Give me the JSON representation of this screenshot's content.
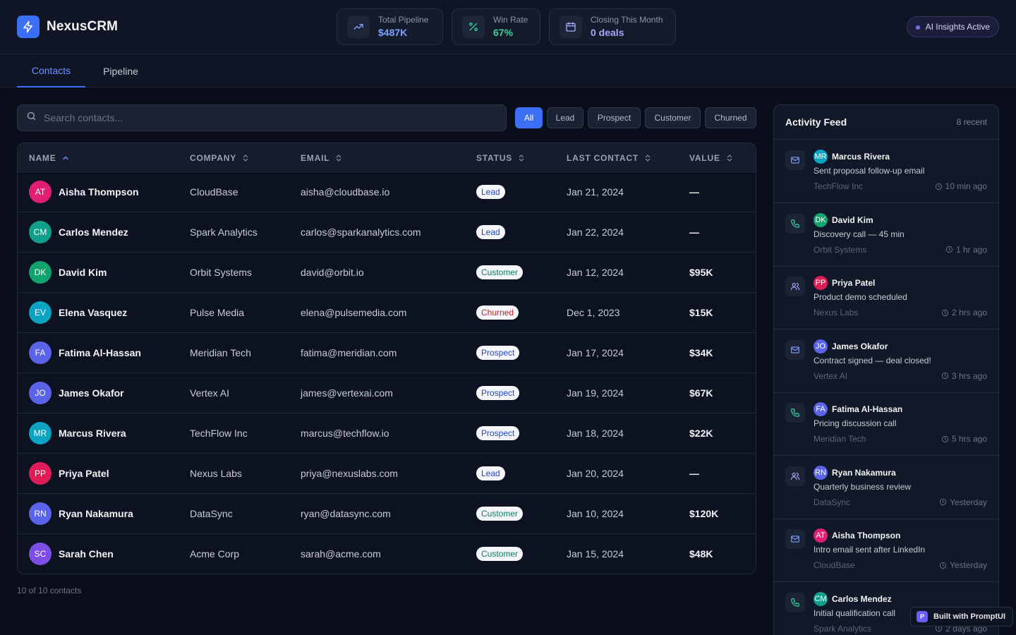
{
  "app": {
    "name": "NexusCRM",
    "logo_icon": "lightning-icon",
    "accent": "#3b6ff5"
  },
  "stats": [
    {
      "label": "Total Pipeline",
      "value": "$487K",
      "icon": "trending-up-icon",
      "color": "#7ea2ff"
    },
    {
      "label": "Win Rate",
      "value": "67%",
      "icon": "percent-icon",
      "color": "#34d399"
    },
    {
      "label": "Closing This Month",
      "value": "0 deals",
      "icon": "calendar-icon",
      "color": "#a5a8ff"
    }
  ],
  "ai_status": "AI Insights Active",
  "tabs": [
    {
      "label": "Contacts",
      "active": true
    },
    {
      "label": "Pipeline",
      "active": false
    }
  ],
  "search": {
    "placeholder": "Search contacts..."
  },
  "filters": [
    {
      "label": "All",
      "active": true
    },
    {
      "label": "Lead",
      "active": false
    },
    {
      "label": "Prospect",
      "active": false
    },
    {
      "label": "Customer",
      "active": false
    },
    {
      "label": "Churned",
      "active": false
    }
  ],
  "table": {
    "columns": [
      "NAME",
      "COMPANY",
      "EMAIL",
      "STATUS",
      "LAST CONTACT",
      "VALUE"
    ],
    "sorted_column": "NAME",
    "sort_direction": "ascending",
    "rows": [
      {
        "initials": "AT",
        "avatar_color": "#e11d74",
        "name": "Aisha Thompson",
        "company": "CloudBase",
        "email": "aisha@cloudbase.io",
        "status": "Lead",
        "status_color": "#2147c9",
        "last_contact": "Jan 21, 2024",
        "value": "—"
      },
      {
        "initials": "CM",
        "avatar_color": "#0f9f8a",
        "name": "Carlos Mendez",
        "company": "Spark Analytics",
        "email": "carlos@sparkanalytics.com",
        "status": "Lead",
        "status_color": "#2147c9",
        "last_contact": "Jan 22, 2024",
        "value": "—"
      },
      {
        "initials": "DK",
        "avatar_color": "#10a36e",
        "name": "David Kim",
        "company": "Orbit Systems",
        "email": "david@orbit.io",
        "status": "Customer",
        "status_color": "#0f7a5f",
        "last_contact": "Jan 12, 2024",
        "value": "$95K"
      },
      {
        "initials": "EV",
        "avatar_color": "#0aa3c2",
        "name": "Elena Vasquez",
        "company": "Pulse Media",
        "email": "elena@pulsemedia.com",
        "status": "Churned",
        "status_color": "#c42424",
        "last_contact": "Dec 1, 2023",
        "value": "$15K"
      },
      {
        "initials": "FA",
        "avatar_color": "#5b63e8",
        "name": "Fatima Al-Hassan",
        "company": "Meridian Tech",
        "email": "fatima@meridian.com",
        "status": "Prospect",
        "status_color": "#2147c9",
        "last_contact": "Jan 17, 2024",
        "value": "$34K"
      },
      {
        "initials": "JO",
        "avatar_color": "#5b63e8",
        "name": "James Okafor",
        "company": "Vertex AI",
        "email": "james@vertexai.com",
        "status": "Prospect",
        "status_color": "#2147c9",
        "last_contact": "Jan 19, 2024",
        "value": "$67K"
      },
      {
        "initials": "MR",
        "avatar_color": "#0aa3c2",
        "name": "Marcus Rivera",
        "company": "TechFlow Inc",
        "email": "marcus@techflow.io",
        "status": "Prospect",
        "status_color": "#2147c9",
        "last_contact": "Jan 18, 2024",
        "value": "$22K"
      },
      {
        "initials": "PP",
        "avatar_color": "#e11d58",
        "name": "Priya Patel",
        "company": "Nexus Labs",
        "email": "priya@nexuslabs.com",
        "status": "Lead",
        "status_color": "#2147c9",
        "last_contact": "Jan 20, 2024",
        "value": "—"
      },
      {
        "initials": "RN",
        "avatar_color": "#5b63e8",
        "name": "Ryan Nakamura",
        "company": "DataSync",
        "email": "ryan@datasync.com",
        "status": "Customer",
        "status_color": "#0f7a5f",
        "last_contact": "Jan 10, 2024",
        "value": "$120K"
      },
      {
        "initials": "SC",
        "avatar_color": "#7c4ee6",
        "name": "Sarah Chen",
        "company": "Acme Corp",
        "email": "sarah@acme.com",
        "status": "Customer",
        "status_color": "#0f7a5f",
        "last_contact": "Jan 15, 2024",
        "value": "$48K"
      }
    ]
  },
  "contact_count": "10 of 10 contacts",
  "feed": {
    "title": "Activity Feed",
    "count": "8 recent",
    "items": [
      {
        "type": "mail-icon",
        "icon_color": "#7ea2ff",
        "initials": "MR",
        "avatar_color": "#0aa3c2",
        "name": "Marcus Rivera",
        "description": "Sent proposal follow-up email",
        "company": "TechFlow Inc",
        "time": "10 min ago"
      },
      {
        "type": "phone-icon",
        "icon_color": "#34d399",
        "initials": "DK",
        "avatar_color": "#10a36e",
        "name": "David Kim",
        "description": "Discovery call — 45 min",
        "company": "Orbit Systems",
        "time": "1 hr ago"
      },
      {
        "type": "users-icon",
        "icon_color": "#a5a8ff",
        "initials": "PP",
        "avatar_color": "#e11d58",
        "name": "Priya Patel",
        "description": "Product demo scheduled",
        "company": "Nexus Labs",
        "time": "2 hrs ago"
      },
      {
        "type": "mail-icon",
        "icon_color": "#7ea2ff",
        "initials": "JO",
        "avatar_color": "#5b63e8",
        "name": "James Okafor",
        "description": "Contract signed — deal closed!",
        "company": "Vertex AI",
        "time": "3 hrs ago"
      },
      {
        "type": "phone-icon",
        "icon_color": "#34d399",
        "initials": "FA",
        "avatar_color": "#5b63e8",
        "name": "Fatima Al-Hassan",
        "description": "Pricing discussion call",
        "company": "Meridian Tech",
        "time": "5 hrs ago"
      },
      {
        "type": "users-icon",
        "icon_color": "#a5a8ff",
        "initials": "RN",
        "avatar_color": "#5b63e8",
        "name": "Ryan Nakamura",
        "description": "Quarterly business review",
        "company": "DataSync",
        "time": "Yesterday"
      },
      {
        "type": "mail-icon",
        "icon_color": "#7ea2ff",
        "initials": "AT",
        "avatar_color": "#e11d74",
        "name": "Aisha Thompson",
        "description": "Intro email sent after LinkedIn",
        "company": "CloudBase",
        "time": "Yesterday"
      },
      {
        "type": "phone-icon",
        "icon_color": "#34d399",
        "initials": "CM",
        "avatar_color": "#0f9f8a",
        "name": "Carlos Mendez",
        "description": "Initial qualification call",
        "company": "Spark Analytics",
        "time": "2 days ago"
      }
    ]
  },
  "built_badge": {
    "label": "Built with PromptUI",
    "mark": "P"
  }
}
